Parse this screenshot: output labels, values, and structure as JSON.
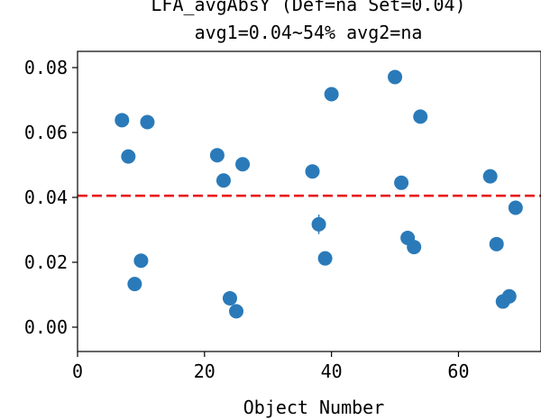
{
  "chart_data": {
    "type": "scatter",
    "title_line1": "LFA_avgAbsY (Def=na Set=0.04)",
    "title_line2": "avg1=0.04~54% avg2=na",
    "xlabel": "Object Number",
    "ylabel": "",
    "xlim": [
      0,
      73
    ],
    "ylim": [
      -0.0075,
      0.085
    ],
    "x_ticks": [
      0,
      20,
      40,
      60
    ],
    "x_tick_labels": [
      "0",
      "20",
      "40",
      "60"
    ],
    "y_ticks": [
      0.0,
      0.02,
      0.04,
      0.06,
      0.08
    ],
    "y_tick_labels": [
      "0.00",
      "0.02",
      "0.04",
      "0.06",
      "0.08"
    ],
    "reference_line": {
      "y": 0.0405,
      "color": "#e8191b",
      "style": "dashed"
    },
    "marker_color": "#2a7ab9",
    "series": [
      {
        "points": [
          {
            "x": 7,
            "y": 0.0638
          },
          {
            "x": 8,
            "y": 0.0526
          },
          {
            "x": 9,
            "y": 0.0133
          },
          {
            "x": 10,
            "y": 0.0205
          },
          {
            "x": 11,
            "y": 0.0632
          },
          {
            "x": 22,
            "y": 0.053
          },
          {
            "x": 23,
            "y": 0.0452
          },
          {
            "x": 24,
            "y": 0.0089
          },
          {
            "x": 25,
            "y": 0.0049
          },
          {
            "x": 26,
            "y": 0.0502
          },
          {
            "x": 37,
            "y": 0.048
          },
          {
            "x": 38,
            "y": 0.0317,
            "err": 0.003
          },
          {
            "x": 39,
            "y": 0.0212
          },
          {
            "x": 40,
            "y": 0.0718
          },
          {
            "x": 50,
            "y": 0.0771
          },
          {
            "x": 51,
            "y": 0.0445
          },
          {
            "x": 52,
            "y": 0.0275
          },
          {
            "x": 53,
            "y": 0.0247
          },
          {
            "x": 54,
            "y": 0.0649
          },
          {
            "x": 65,
            "y": 0.0465
          },
          {
            "x": 66,
            "y": 0.0256
          },
          {
            "x": 67,
            "y": 0.0079
          },
          {
            "x": 68,
            "y": 0.0095
          },
          {
            "x": 69,
            "y": 0.0368
          }
        ]
      }
    ]
  }
}
